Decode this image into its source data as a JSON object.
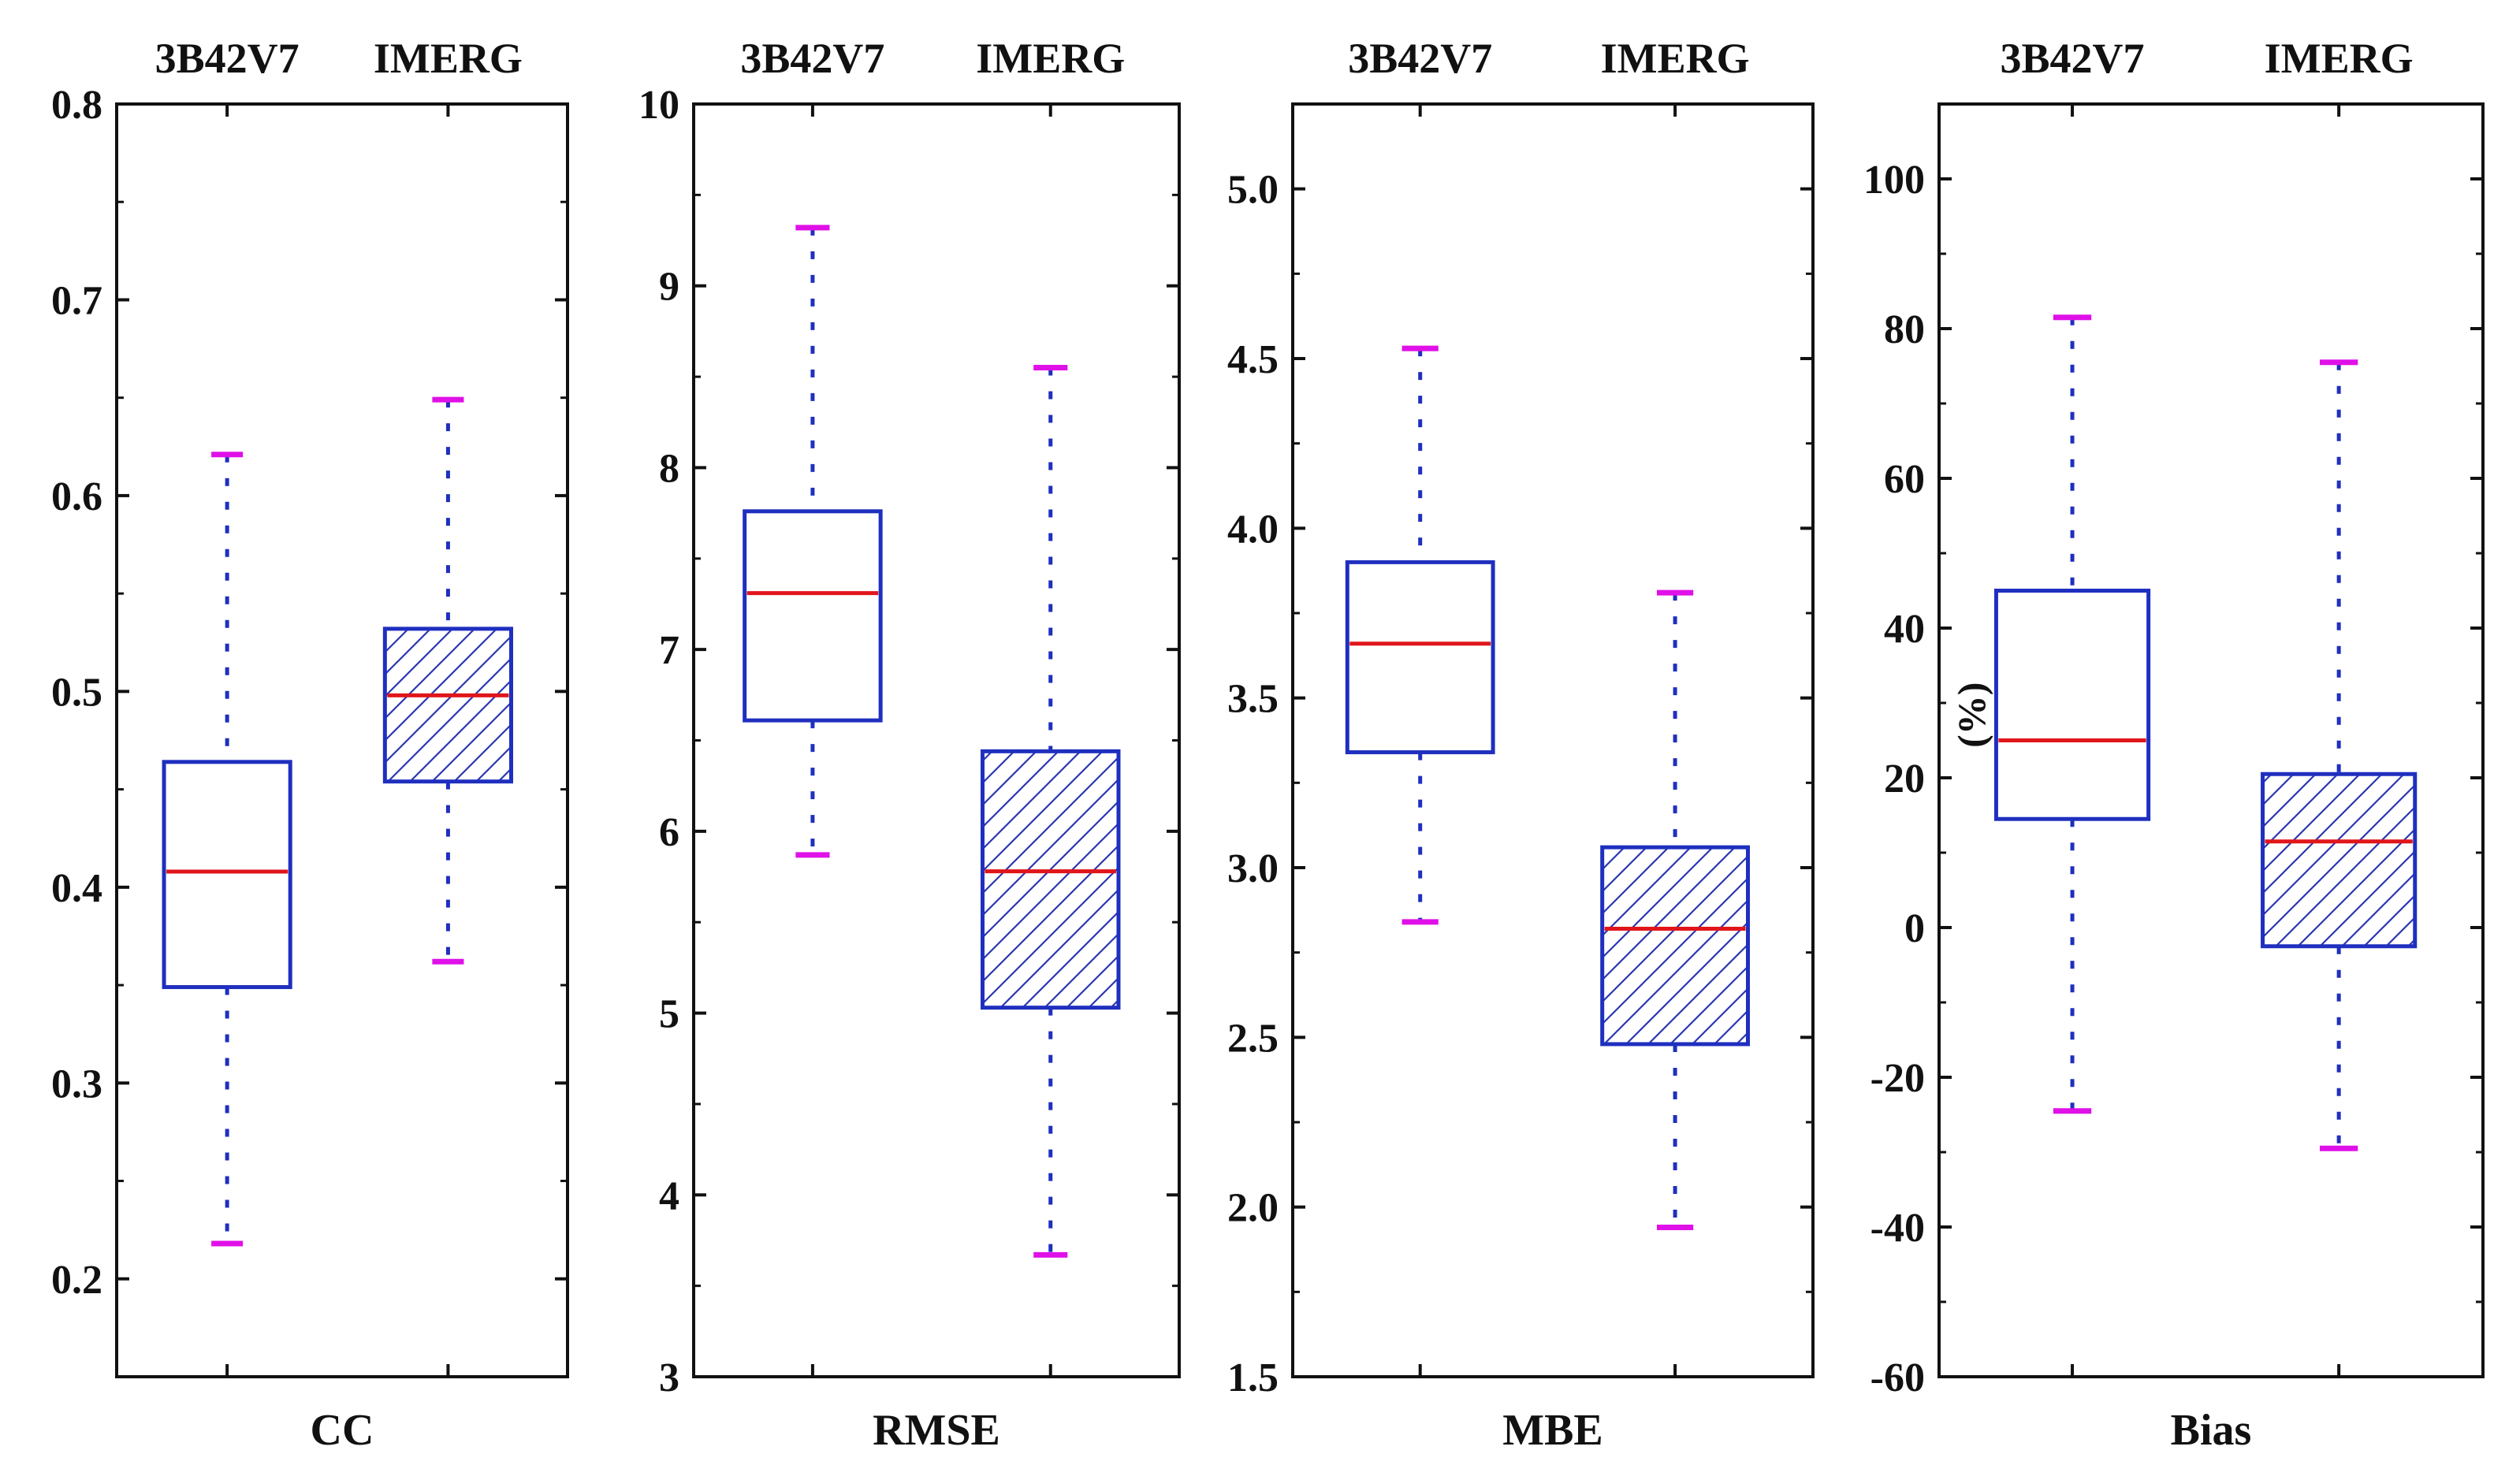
{
  "colors": {
    "box": "#1f2fbf",
    "median": "#e0161b",
    "cap": "#e010e8",
    "hatch": "#2a36b0",
    "axis": "#111111"
  },
  "chart_data": [
    {
      "type": "boxplot",
      "metric": "CC",
      "ylabel": "",
      "ylim": [
        0.15,
        0.8
      ],
      "yticks": [
        "0.2",
        "0.3",
        "0.4",
        "0.5",
        "0.6",
        "0.7",
        "0.8"
      ],
      "groups": [
        {
          "name": "3B42V7",
          "min": 0.218,
          "q1": 0.349,
          "median": 0.408,
          "q3": 0.464,
          "max": 0.621,
          "hatched": false
        },
        {
          "name": "IMERG",
          "min": 0.362,
          "q1": 0.454,
          "median": 0.498,
          "q3": 0.532,
          "max": 0.649,
          "hatched": true
        }
      ]
    },
    {
      "type": "boxplot",
      "metric": "RMSE",
      "ylabel": "",
      "ylim": [
        3,
        10
      ],
      "yticks": [
        "3",
        "4",
        "5",
        "6",
        "7",
        "8",
        "9",
        "10"
      ],
      "groups": [
        {
          "name": "3B42V7",
          "min": 5.87,
          "q1": 6.61,
          "median": 7.31,
          "q3": 7.76,
          "max": 9.32,
          "hatched": false
        },
        {
          "name": "IMERG",
          "min": 3.67,
          "q1": 5.03,
          "median": 5.78,
          "q3": 6.44,
          "max": 8.55,
          "hatched": true
        }
      ]
    },
    {
      "type": "boxplot",
      "metric": "MBE",
      "ylabel": "",
      "ylim": [
        1.5,
        5.25
      ],
      "yticks": [
        "1.5",
        "2.0",
        "2.5",
        "3.0",
        "3.5",
        "4.0",
        "4.5",
        "5.0"
      ],
      "groups": [
        {
          "name": "3B42V7",
          "min": 2.84,
          "q1": 3.34,
          "median": 3.66,
          "q3": 3.9,
          "max": 4.53,
          "hatched": false
        },
        {
          "name": "IMERG",
          "min": 1.94,
          "q1": 2.48,
          "median": 2.82,
          "q3": 3.06,
          "max": 3.81,
          "hatched": true
        }
      ]
    },
    {
      "type": "boxplot",
      "metric": "Bias",
      "ylabel": "(%)",
      "ylim": [
        -60,
        110
      ],
      "yticks": [
        "-60",
        "-40",
        "-20",
        "0",
        "20",
        "40",
        "60",
        "80",
        "100"
      ],
      "groups": [
        {
          "name": "3B42V7",
          "min": -24.5,
          "q1": 14.5,
          "median": 25,
          "q3": 45,
          "max": 81.5,
          "hatched": false
        },
        {
          "name": "IMERG",
          "min": -29.5,
          "q1": -2.5,
          "median": 11.5,
          "q3": 20.5,
          "max": 75.5,
          "hatched": true
        }
      ]
    }
  ]
}
